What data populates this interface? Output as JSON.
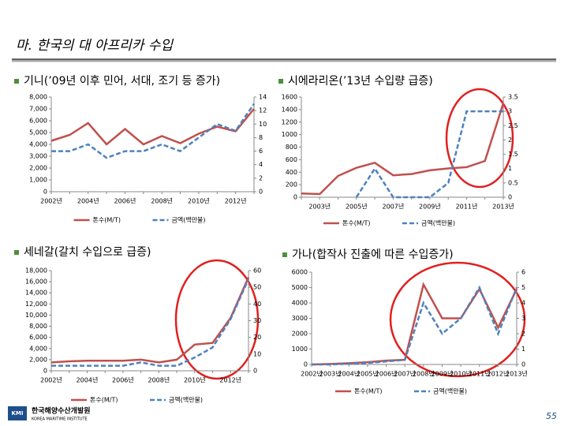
{
  "title": "마. 한국의 대 아프리카 수입",
  "chart_data": [
    {
      "type": "line",
      "title": "기니(’09년 이후 민어, 서대, 조기 등 증가)",
      "categories": [
        "2002년",
        null,
        "2004년",
        null,
        "2006년",
        null,
        "2008년",
        null,
        "2010년",
        null,
        "2012년",
        null
      ],
      "series": [
        {
          "name": "톤수(M/T)",
          "color": "#c0504d",
          "line_style": "solid",
          "values": [
            4300,
            4800,
            5800,
            4000,
            5300,
            4000,
            4700,
            4100,
            4900,
            5500,
            5100,
            7000
          ]
        },
        {
          "name": "금액(백만불)",
          "color": "#4f81bd",
          "line_style": "dashed",
          "axis": "y2",
          "values": [
            6,
            6,
            7,
            5,
            6,
            6,
            7,
            6,
            8,
            10,
            9,
            13
          ]
        }
      ],
      "ylim": [
        0,
        8000
      ],
      "yticks": [
        0,
        {
          "value": 1000,
          "label": "1,000"
        },
        {
          "value": 2000,
          "label": "2,000"
        },
        {
          "value": 3000,
          "label": "3,000"
        },
        {
          "value": 4000,
          "label": "4,000"
        },
        {
          "value": 5000,
          "label": "5,000"
        },
        {
          "value": 6000,
          "label": "6,000"
        },
        {
          "value": 7000,
          "label": "7,000"
        },
        {
          "value": 8000,
          "label": "8,000"
        }
      ],
      "y2lim": [
        0,
        14
      ],
      "y2ticks": [
        0,
        2,
        4,
        6,
        8,
        10,
        12,
        14
      ]
    },
    {
      "type": "line",
      "title": "시에라리온(’13년 수입량 급증)",
      "categories": [
        null,
        "2003년",
        null,
        "2005년",
        null,
        "2007년",
        null,
        "2009년",
        null,
        "2011년",
        null,
        "2013년"
      ],
      "series": [
        {
          "name": "톤수(M/T)",
          "color": "#c0504d",
          "line_style": "solid",
          "values": [
            60,
            50,
            340,
            470,
            550,
            350,
            370,
            430,
            460,
            480,
            580,
            1500
          ]
        },
        {
          "name": "금액(백만불)",
          "color": "#4f81bd",
          "line_style": "dashed",
          "axis": "y2",
          "values": [
            null,
            null,
            null,
            0,
            1,
            0,
            0,
            0,
            0.5,
            3,
            3,
            3
          ]
        }
      ],
      "ylim": [
        0,
        1600
      ],
      "yticks": [
        0,
        200,
        400,
        600,
        800,
        1000,
        1200,
        1400,
        1600
      ],
      "y2lim": [
        0,
        3.5
      ],
      "y2ticks": [
        0,
        0.5,
        1,
        1.5,
        2,
        2.5,
        3,
        3.5
      ]
    },
    {
      "type": "line",
      "title": "세네갈(갈치 수입으로 급증)",
      "categories": [
        "2002년",
        null,
        "2004년",
        null,
        "2006년",
        null,
        "2008년",
        null,
        "2010년",
        null,
        "2012년",
        null
      ],
      "series": [
        {
          "name": "톤수(M/T)",
          "color": "#c0504d",
          "line_style": "solid",
          "values": [
            1500,
            1700,
            1800,
            1800,
            1800,
            2000,
            1500,
            2000,
            4700,
            5000,
            9500,
            16800
          ]
        },
        {
          "name": "금액(백만불)",
          "color": "#4f81bd",
          "line_style": "dashed",
          "axis": "y2",
          "values": [
            3,
            3,
            3,
            3,
            3,
            5,
            3,
            3,
            8,
            14,
            31,
            55
          ]
        }
      ],
      "ylim": [
        0,
        18000
      ],
      "yticks": [
        0,
        {
          "value": 2000,
          "label": "2,000"
        },
        {
          "value": 4000,
          "label": "4,000"
        },
        {
          "value": 6000,
          "label": "6,000"
        },
        {
          "value": 8000,
          "label": "8,000"
        },
        {
          "value": 10000,
          "label": "10,000"
        },
        {
          "value": 12000,
          "label": "12,000"
        },
        {
          "value": 14000,
          "label": "14,000"
        },
        {
          "value": 16000,
          "label": "16,000"
        },
        {
          "value": 18000,
          "label": "18,000"
        }
      ],
      "y2lim": [
        0,
        60
      ],
      "y2ticks": [
        0,
        10,
        20,
        30,
        40,
        50,
        60
      ]
    },
    {
      "type": "line",
      "title": "가나(합작사 진출에 따른 수입증가)",
      "categories": [
        "2002년",
        "2003년",
        "2004년",
        "2005년",
        "2006년",
        "2007년",
        "2008년",
        "2009년",
        "2010년",
        "2011년",
        "2012년",
        "2013년"
      ],
      "series": [
        {
          "name": "톤수(M/T)",
          "color": "#c0504d",
          "line_style": "solid",
          "values": [
            0,
            30,
            80,
            150,
            250,
            300,
            5200,
            3000,
            3000,
            4900,
            2400,
            4900
          ]
        },
        {
          "name": "금액(백만불)",
          "color": "#4f81bd",
          "line_style": "dashed",
          "axis": "y2",
          "values": [
            0,
            0,
            0.05,
            0.1,
            0.2,
            0.3,
            4,
            2,
            3,
            5,
            2,
            5
          ]
        }
      ],
      "ylim": [
        0,
        6000
      ],
      "yticks": [
        0,
        1000,
        2000,
        3000,
        4000,
        5000,
        6000
      ],
      "y2lim": [
        0,
        6
      ],
      "y2ticks": [
        0,
        1,
        2,
        3,
        4,
        5,
        6
      ]
    }
  ],
  "footer": {
    "logo": "KMI",
    "org": "한국해양수산개발원",
    "org_en": "KOREA MARITIME INSTITUTE",
    "page": "55"
  }
}
